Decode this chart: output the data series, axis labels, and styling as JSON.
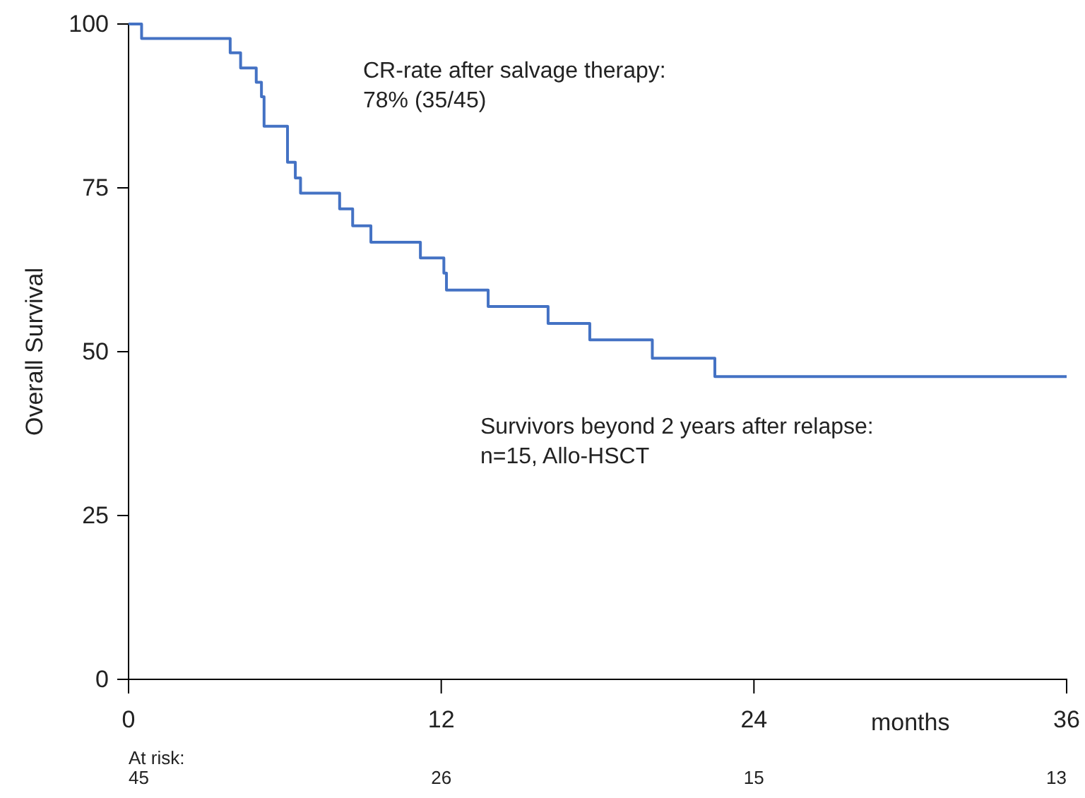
{
  "chart_data": {
    "type": "step",
    "ylabel": "Overall Survival",
    "xlabel": "months",
    "x": [
      0,
      0.5,
      3.9,
      4.3,
      4.9,
      5.1,
      5.2,
      6.1,
      6.4,
      6.6,
      8.1,
      8.6,
      9.3,
      11.2,
      12.1,
      12.2,
      13.8,
      16.1,
      17.7,
      20.1,
      22.5,
      36
    ],
    "series": [
      {
        "color": "#4472c4",
        "values": [
          100,
          97.8,
          95.6,
          93.3,
          91.1,
          88.9,
          84.4,
          78.9,
          76.5,
          74.2,
          71.8,
          69.2,
          66.7,
          64.3,
          62.0,
          59.4,
          56.9,
          54.3,
          51.8,
          49.0,
          46.2,
          46.2
        ]
      }
    ],
    "xlim": [
      0,
      36
    ],
    "xticks": [
      0,
      12,
      24,
      36
    ],
    "ylim": [
      0,
      100
    ],
    "yticks": [
      0,
      25,
      50,
      75,
      100
    ],
    "grid": false,
    "annotations": [
      "CR-rate after salvage therapy:\n78% (35/45)",
      "Survivors beyond 2 years after relapse:\nn=15, Allo-HSCT",
      "At risk:",
      "45",
      "26",
      "15",
      "13"
    ]
  }
}
